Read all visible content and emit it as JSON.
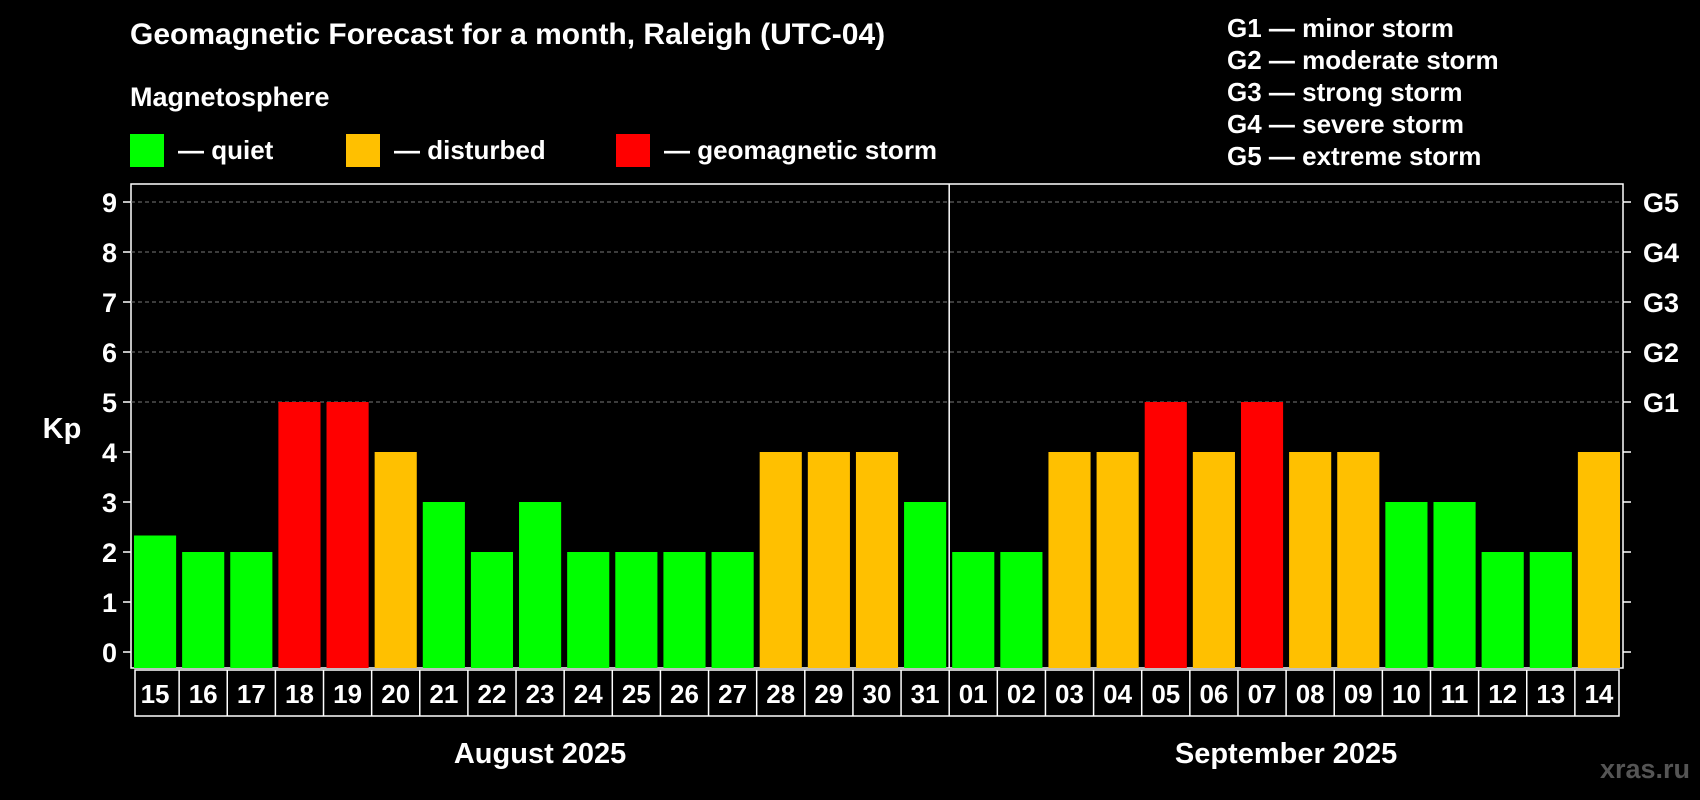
{
  "header": {
    "title": "Geomagnetic Forecast for a month, Raleigh (UTC-04)",
    "subtitle": "Magnetosphere"
  },
  "legend": {
    "quiet": {
      "label": "— quiet",
      "color": "#00ff00"
    },
    "disturbed": {
      "label": "— disturbed",
      "color": "#ffc000"
    },
    "storm": {
      "label": "— geomagnetic storm",
      "color": "#ff0000"
    }
  },
  "storm_scale": [
    "G1 — minor storm",
    "G2 — moderate storm",
    "G3 — strong storm",
    "G4 — severe storm",
    "G5 — extreme storm"
  ],
  "watermark": "xras.ru",
  "chart_data": {
    "type": "bar",
    "title": "Geomagnetic Forecast for a month, Raleigh (UTC-04)",
    "ylabel": "Kp",
    "ylim": [
      0,
      9
    ],
    "yticks": [
      0,
      1,
      2,
      3,
      4,
      5,
      6,
      7,
      8,
      9
    ],
    "right_axis_labels": [
      {
        "value": 5,
        "label": "G1"
      },
      {
        "value": 6,
        "label": "G2"
      },
      {
        "value": 7,
        "label": "G3"
      },
      {
        "value": 8,
        "label": "G4"
      },
      {
        "value": 9,
        "label": "G5"
      }
    ],
    "categories": [
      "15",
      "16",
      "17",
      "18",
      "19",
      "20",
      "21",
      "22",
      "23",
      "24",
      "25",
      "26",
      "27",
      "28",
      "29",
      "30",
      "31",
      "01",
      "02",
      "03",
      "04",
      "05",
      "06",
      "07",
      "08",
      "09",
      "10",
      "11",
      "12",
      "13",
      "14"
    ],
    "values": [
      2.33,
      2,
      2,
      5,
      5,
      4,
      3,
      2,
      3,
      2,
      2,
      2,
      2,
      4,
      4,
      4,
      3,
      2,
      2,
      4,
      4,
      5,
      4,
      5,
      4,
      4,
      3,
      3,
      2,
      2,
      4
    ],
    "status": [
      "quiet",
      "quiet",
      "quiet",
      "storm",
      "storm",
      "disturbed",
      "quiet",
      "quiet",
      "quiet",
      "quiet",
      "quiet",
      "quiet",
      "quiet",
      "disturbed",
      "disturbed",
      "disturbed",
      "quiet",
      "quiet",
      "quiet",
      "disturbed",
      "disturbed",
      "storm",
      "disturbed",
      "storm",
      "disturbed",
      "disturbed",
      "quiet",
      "quiet",
      "quiet",
      "quiet",
      "disturbed"
    ],
    "month_groups": [
      {
        "label": "August 2025",
        "count": 17
      },
      {
        "label": "September 2025",
        "count": 14
      }
    ],
    "grid": "dashed, y-axis"
  }
}
